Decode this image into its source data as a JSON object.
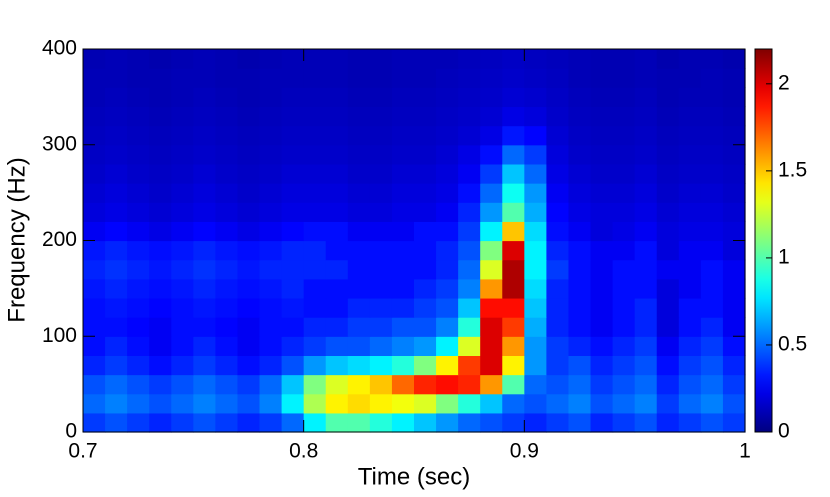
{
  "chart_data": {
    "type": "heatmap",
    "xlabel": "Time (sec)",
    "ylabel": "Frequency (Hz)",
    "xlim": [
      0.7,
      1
    ],
    "xticks": [
      0.7,
      0.8,
      0.9,
      1
    ],
    "ylim": [
      0,
      400
    ],
    "yticks": [
      0,
      100,
      200,
      300,
      400
    ],
    "zlim": [
      0,
      2.2
    ],
    "zticks": [
      0,
      0.5,
      1,
      1.5,
      2
    ],
    "colormap": "jet",
    "z": [
      [
        0.4,
        0.45,
        0.4,
        0.35,
        0.4,
        0.45,
        0.4,
        0.35,
        0.4,
        0.5,
        0.8,
        1.0,
        1.0,
        0.9,
        0.8,
        0.7,
        0.6,
        0.5,
        0.45,
        0.4,
        0.35,
        0.4,
        0.45,
        0.35,
        0.4,
        0.45,
        0.35,
        0.4,
        0.45,
        0.4
      ],
      [
        0.5,
        0.55,
        0.5,
        0.45,
        0.5,
        0.55,
        0.5,
        0.45,
        0.55,
        0.8,
        1.2,
        1.4,
        1.45,
        1.4,
        1.35,
        1.3,
        1.1,
        0.9,
        0.7,
        0.5,
        0.45,
        0.5,
        0.55,
        0.45,
        0.5,
        0.55,
        0.4,
        0.5,
        0.55,
        0.45
      ],
      [
        0.45,
        0.5,
        0.45,
        0.4,
        0.45,
        0.5,
        0.45,
        0.4,
        0.5,
        0.7,
        1.1,
        1.3,
        1.4,
        1.5,
        1.7,
        1.85,
        1.9,
        1.85,
        1.6,
        1.0,
        0.5,
        0.45,
        0.5,
        0.4,
        0.45,
        0.5,
        0.35,
        0.45,
        0.5,
        0.4
      ],
      [
        0.35,
        0.4,
        0.35,
        0.3,
        0.35,
        0.4,
        0.35,
        0.3,
        0.35,
        0.45,
        0.6,
        0.7,
        0.75,
        0.8,
        0.9,
        1.1,
        1.4,
        1.8,
        2.0,
        1.4,
        0.6,
        0.4,
        0.45,
        0.35,
        0.4,
        0.45,
        0.3,
        0.4,
        0.45,
        0.35
      ],
      [
        0.3,
        0.35,
        0.3,
        0.25,
        0.3,
        0.35,
        0.3,
        0.25,
        0.3,
        0.35,
        0.4,
        0.45,
        0.45,
        0.5,
        0.55,
        0.6,
        0.8,
        1.3,
        2.0,
        1.6,
        0.6,
        0.4,
        0.35,
        0.3,
        0.35,
        0.4,
        0.25,
        0.35,
        0.4,
        0.3
      ],
      [
        0.3,
        0.3,
        0.28,
        0.25,
        0.3,
        0.3,
        0.28,
        0.25,
        0.3,
        0.3,
        0.35,
        0.35,
        0.4,
        0.4,
        0.45,
        0.45,
        0.55,
        0.9,
        2.0,
        1.8,
        0.65,
        0.35,
        0.3,
        0.25,
        0.3,
        0.35,
        0.2,
        0.3,
        0.35,
        0.25
      ],
      [
        0.3,
        0.32,
        0.3,
        0.28,
        0.3,
        0.32,
        0.3,
        0.28,
        0.3,
        0.32,
        0.3,
        0.3,
        0.35,
        0.35,
        0.35,
        0.4,
        0.45,
        0.7,
        1.9,
        1.9,
        0.7,
        0.35,
        0.3,
        0.25,
        0.3,
        0.35,
        0.2,
        0.3,
        0.3,
        0.25
      ],
      [
        0.32,
        0.35,
        0.32,
        0.3,
        0.32,
        0.35,
        0.32,
        0.3,
        0.32,
        0.35,
        0.3,
        0.3,
        0.3,
        0.3,
        0.3,
        0.35,
        0.4,
        0.55,
        1.6,
        2.1,
        0.75,
        0.35,
        0.3,
        0.25,
        0.3,
        0.3,
        0.2,
        0.25,
        0.3,
        0.25
      ],
      [
        0.35,
        0.38,
        0.35,
        0.32,
        0.35,
        0.38,
        0.35,
        0.32,
        0.35,
        0.35,
        0.35,
        0.35,
        0.3,
        0.3,
        0.3,
        0.3,
        0.35,
        0.5,
        1.3,
        2.1,
        0.8,
        0.4,
        0.3,
        0.25,
        0.3,
        0.3,
        0.25,
        0.25,
        0.3,
        0.25
      ],
      [
        0.32,
        0.35,
        0.32,
        0.3,
        0.32,
        0.35,
        0.32,
        0.3,
        0.32,
        0.35,
        0.35,
        0.3,
        0.3,
        0.3,
        0.3,
        0.3,
        0.35,
        0.45,
        1.1,
        2.0,
        0.8,
        0.35,
        0.3,
        0.25,
        0.25,
        0.3,
        0.2,
        0.25,
        0.25,
        0.2
      ],
      [
        0.25,
        0.28,
        0.25,
        0.22,
        0.25,
        0.28,
        0.25,
        0.22,
        0.25,
        0.28,
        0.3,
        0.3,
        0.25,
        0.25,
        0.25,
        0.3,
        0.3,
        0.4,
        0.8,
        1.5,
        0.75,
        0.3,
        0.25,
        0.2,
        0.22,
        0.25,
        0.2,
        0.22,
        0.22,
        0.2
      ],
      [
        0.2,
        0.22,
        0.2,
        0.18,
        0.2,
        0.22,
        0.2,
        0.18,
        0.2,
        0.22,
        0.22,
        0.22,
        0.2,
        0.2,
        0.22,
        0.22,
        0.25,
        0.35,
        0.6,
        1.0,
        0.65,
        0.28,
        0.22,
        0.2,
        0.2,
        0.22,
        0.18,
        0.2,
        0.2,
        0.18
      ],
      [
        0.18,
        0.2,
        0.18,
        0.16,
        0.18,
        0.2,
        0.18,
        0.16,
        0.18,
        0.2,
        0.2,
        0.2,
        0.18,
        0.18,
        0.2,
        0.2,
        0.22,
        0.3,
        0.5,
        0.85,
        0.6,
        0.25,
        0.2,
        0.18,
        0.18,
        0.2,
        0.16,
        0.18,
        0.18,
        0.16
      ],
      [
        0.16,
        0.18,
        0.16,
        0.15,
        0.16,
        0.18,
        0.16,
        0.15,
        0.16,
        0.18,
        0.18,
        0.18,
        0.16,
        0.16,
        0.18,
        0.18,
        0.2,
        0.25,
        0.4,
        0.7,
        0.5,
        0.22,
        0.18,
        0.16,
        0.16,
        0.18,
        0.15,
        0.16,
        0.16,
        0.15
      ],
      [
        0.15,
        0.16,
        0.15,
        0.14,
        0.15,
        0.16,
        0.15,
        0.14,
        0.15,
        0.16,
        0.16,
        0.16,
        0.15,
        0.15,
        0.16,
        0.16,
        0.18,
        0.22,
        0.3,
        0.5,
        0.4,
        0.2,
        0.16,
        0.15,
        0.15,
        0.16,
        0.14,
        0.15,
        0.15,
        0.14
      ],
      [
        0.14,
        0.15,
        0.14,
        0.13,
        0.14,
        0.15,
        0.14,
        0.13,
        0.14,
        0.15,
        0.15,
        0.15,
        0.14,
        0.14,
        0.15,
        0.15,
        0.16,
        0.18,
        0.22,
        0.32,
        0.28,
        0.18,
        0.15,
        0.14,
        0.14,
        0.15,
        0.13,
        0.14,
        0.14,
        0.13
      ],
      [
        0.13,
        0.14,
        0.13,
        0.12,
        0.13,
        0.14,
        0.13,
        0.12,
        0.13,
        0.14,
        0.14,
        0.14,
        0.13,
        0.13,
        0.14,
        0.14,
        0.15,
        0.16,
        0.18,
        0.22,
        0.2,
        0.16,
        0.14,
        0.13,
        0.13,
        0.14,
        0.12,
        0.13,
        0.13,
        0.12
      ],
      [
        0.12,
        0.13,
        0.12,
        0.11,
        0.12,
        0.13,
        0.12,
        0.11,
        0.12,
        0.13,
        0.13,
        0.13,
        0.12,
        0.12,
        0.13,
        0.13,
        0.14,
        0.15,
        0.16,
        0.18,
        0.17,
        0.15,
        0.13,
        0.12,
        0.12,
        0.13,
        0.11,
        0.12,
        0.12,
        0.11
      ],
      [
        0.12,
        0.12,
        0.11,
        0.11,
        0.12,
        0.12,
        0.11,
        0.11,
        0.12,
        0.12,
        0.12,
        0.12,
        0.11,
        0.11,
        0.12,
        0.12,
        0.13,
        0.14,
        0.15,
        0.16,
        0.15,
        0.14,
        0.12,
        0.11,
        0.11,
        0.12,
        0.11,
        0.11,
        0.12,
        0.11
      ],
      [
        0.11,
        0.12,
        0.11,
        0.1,
        0.11,
        0.12,
        0.11,
        0.1,
        0.11,
        0.12,
        0.12,
        0.12,
        0.11,
        0.11,
        0.12,
        0.12,
        0.12,
        0.13,
        0.14,
        0.15,
        0.14,
        0.13,
        0.12,
        0.11,
        0.11,
        0.12,
        0.1,
        0.11,
        0.11,
        0.1
      ]
    ]
  }
}
